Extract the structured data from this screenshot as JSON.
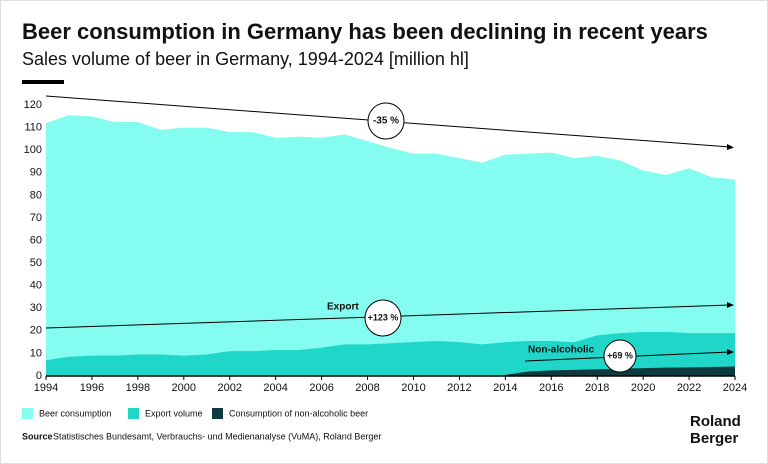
{
  "chart_data": {
    "type": "area",
    "title": "Beer consumption in Germany has been declining in recent years",
    "subtitle": "Sales volume of beer in Germany, 1994-2024 [million hl]",
    "x": [
      1994,
      1995,
      1996,
      1997,
      1998,
      1999,
      2000,
      2001,
      2002,
      2003,
      2004,
      2005,
      2006,
      2007,
      2008,
      2009,
      2010,
      2011,
      2012,
      2013,
      2014,
      2015,
      2016,
      2017,
      2018,
      2019,
      2020,
      2021,
      2022,
      2023,
      2024
    ],
    "xlim": [
      1994,
      2024
    ],
    "xticks": [
      1994,
      1996,
      1998,
      2000,
      2002,
      2004,
      2006,
      2008,
      2010,
      2012,
      2014,
      2016,
      2018,
      2020,
      2022,
      2024
    ],
    "ylim": [
      0,
      124
    ],
    "yticks": [
      0,
      10,
      20,
      30,
      40,
      50,
      60,
      70,
      80,
      90,
      100,
      110,
      120
    ],
    "series": [
      {
        "name": "Beer consumption",
        "color": "#84fdf0",
        "values": [
          112,
          115.5,
          115,
          112.5,
          112.5,
          109,
          110,
          110,
          108,
          108,
          105.5,
          106,
          105.5,
          107,
          104,
          101,
          98.5,
          98.5,
          96.5,
          94.5,
          98,
          98.5,
          99,
          96.5,
          97.5,
          95.5,
          91,
          89,
          92,
          88,
          87
        ]
      },
      {
        "name": "Export volume",
        "color": "#1fd6c8",
        "values": [
          7,
          8.5,
          9,
          9,
          9.5,
          9.5,
          9,
          9.5,
          11,
          11,
          11.5,
          11.5,
          12.5,
          14,
          14,
          14.5,
          15,
          15.5,
          15,
          14,
          15,
          15.5,
          15.5,
          15,
          18,
          19,
          19.5,
          19.5,
          19,
          19,
          19
        ]
      },
      {
        "name": "Consumption of non-alcoholic beer",
        "color": "#0c3a3f",
        "values": [
          null,
          null,
          null,
          null,
          null,
          null,
          null,
          null,
          null,
          null,
          null,
          null,
          null,
          null,
          null,
          null,
          null,
          null,
          null,
          null,
          0.5,
          2,
          2.5,
          2.7,
          3,
          3.2,
          3.5,
          3.7,
          3.8,
          4,
          4.2
        ]
      }
    ],
    "annotations": [
      "-35 %",
      "Export",
      "+123 %",
      "Non-alcoholic",
      "+69 %"
    ],
    "source_label": "Source",
    "source": "Statistisches Bundesamt, Verbrauchs- und Medienanalyse (VuMA), Roland Berger",
    "logo": [
      "Roland",
      "Berger"
    ]
  }
}
